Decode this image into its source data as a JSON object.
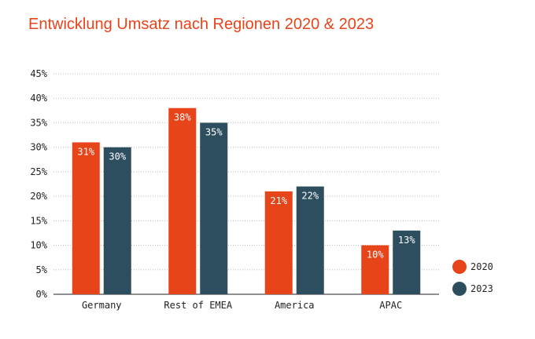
{
  "chart_data": {
    "type": "bar",
    "title": "Entwicklung Umsatz nach Regionen 2020 & 2023",
    "categories": [
      "Germany",
      "Rest of EMEA",
      "America",
      "APAC"
    ],
    "series": [
      {
        "name": "2020",
        "values": [
          31,
          38,
          21,
          10
        ],
        "labels": [
          "31%",
          "38%",
          "21%",
          "10%"
        ],
        "color": "#e8441a"
      },
      {
        "name": "2023",
        "values": [
          30,
          35,
          22,
          13
        ],
        "labels": [
          "30%",
          "35%",
          "22%",
          "13%"
        ],
        "color": "#2d4e5f"
      }
    ],
    "ylim": [
      0,
      45
    ],
    "yticks": [
      0,
      5,
      10,
      15,
      20,
      25,
      30,
      35,
      40,
      45
    ],
    "ytick_labels": [
      "0%",
      "5%",
      "10%",
      "15%",
      "20%",
      "25%",
      "30%",
      "35%",
      "40%",
      "45%"
    ],
    "grid": "horizontal dotted",
    "legend": "bottom-right"
  }
}
